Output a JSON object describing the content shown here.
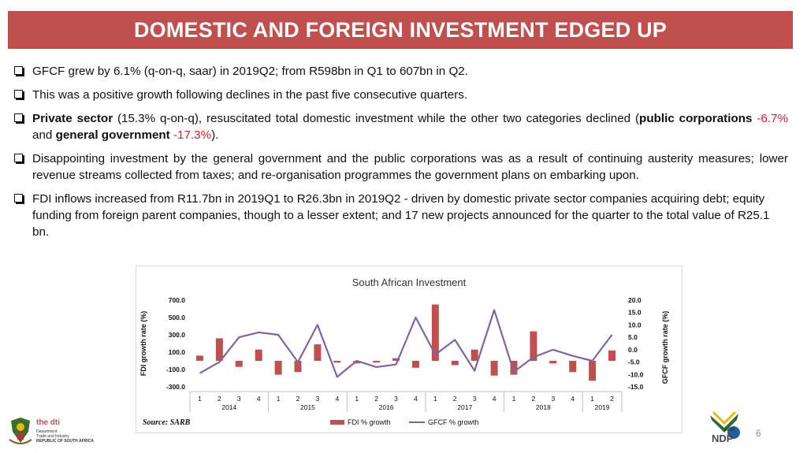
{
  "slide": {
    "title": "DOMESTIC AND FOREIGN INVESTMENT EDGED UP",
    "bullet1": "GFCF grew by 6.1% (q-on-q, saar) in 2019Q2; from R598bn in Q1 to 607bn in Q2.",
    "bullet2": "This was a positive growth following declines in the past five consecutive quarters.",
    "bullet3": {
      "b_private": "Private sector",
      "t1": " (15.3% q-on-q), resuscitated total domestic investment while the other two categories declined (",
      "b_public": "public corporations",
      "v_public": " -6.7%",
      "t2": " and ",
      "b_gg": "general government",
      "v_gg": " -17.3%",
      "t3": ")."
    },
    "bullet4": "Disappointing investment by the general government and the public corporations was as a result of continuing austerity measures; lower revenue streams collected from taxes; and re-organisation programmes the government plans on embarking upon.",
    "bullet5": "FDI inflows increased from R11.7bn in 2019Q1 to R26.3bn in 2019Q2 - driven by domestic private sector companies acquiring debt; equity funding from foreign parent companies, though to a lesser extent; and 17 new projects announced for the quarter to the total value of R25.1 bn.",
    "source": "Source: SARB",
    "page_number": "6",
    "logo": {
      "dti": "the dti",
      "line1": "Department:",
      "line2": "Trade and Industry",
      "line3": "REPUBLIC OF SOUTH AFRICA",
      "ndp_year": "2030",
      "ndp_text": "NDP"
    },
    "colors": {
      "title_bar": "#c0504d",
      "fdi_bar": "#c0504d",
      "gfcf_line": "#8064a2",
      "highlight_red": "#e02020"
    }
  },
  "chart_data": {
    "type": "bar",
    "title": "South African Investment",
    "categories": [
      "1",
      "2",
      "3",
      "4",
      "1",
      "2",
      "3",
      "4",
      "1",
      "2",
      "3",
      "4",
      "1",
      "2",
      "3",
      "4",
      "1",
      "2",
      "3",
      "4",
      "1",
      "2"
    ],
    "year_groups": [
      {
        "label": "2014",
        "count": 4
      },
      {
        "label": "2015",
        "count": 4
      },
      {
        "label": "2016",
        "count": 4
      },
      {
        "label": "2017",
        "count": 4
      },
      {
        "label": "2018",
        "count": 4
      },
      {
        "label": "2019",
        "count": 2
      }
    ],
    "ylabel": "FDI growth rate (%)",
    "y2label": "GFCF growth rate (%)",
    "ylim": [
      -300,
      700
    ],
    "y2lim": [
      -15,
      20
    ],
    "yticks": [
      "700.0",
      "500.0",
      "300.0",
      "100.0",
      "-100.0",
      "-300.0"
    ],
    "y2ticks": [
      "20.0",
      "15.0",
      "10.0",
      "5.0",
      "0.0",
      "-5.0",
      "-10.0",
      "-15.0"
    ],
    "legend_position": "bottom",
    "series": [
      {
        "name": "FDI % growth",
        "type": "bar",
        "axis": "left",
        "values": [
          60,
          260,
          -70,
          130,
          -160,
          -130,
          190,
          -20,
          -30,
          -20,
          30,
          -80,
          650,
          -50,
          130,
          -170,
          -160,
          340,
          -30,
          -130,
          -230,
          120
        ]
      },
      {
        "name": "GFCF % growth",
        "type": "line",
        "axis": "right",
        "values": [
          -9.5,
          -5.0,
          5.0,
          7.0,
          6.0,
          -5.0,
          10.0,
          -11.0,
          -4.5,
          -7.0,
          -6.0,
          13.0,
          -2.0,
          4.0,
          -8.5,
          16.0,
          -9.0,
          -3.0,
          0.0,
          -2.5,
          -4.5,
          6.0
        ]
      }
    ]
  }
}
